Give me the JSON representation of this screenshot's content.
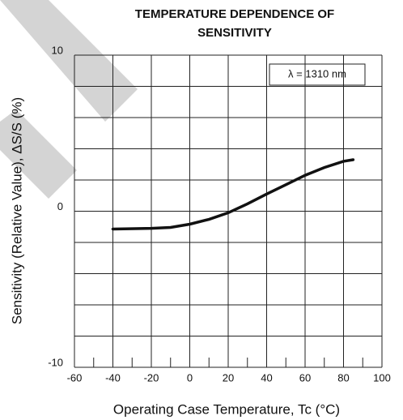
{
  "chart_data": {
    "type": "line",
    "title": [
      "TEMPERATURE DEPENDENCE OF",
      "SENSITIVITY"
    ],
    "x_label": "Operating Case Temperature, Tc (°C)",
    "y_label": "Sensitivity (Relative Value), ΔS/S (%)",
    "annotation": "λ = 1310 nm",
    "xlim": [
      -60,
      100
    ],
    "ylim": [
      -10,
      10
    ],
    "xticks": [
      -60,
      -40,
      -20,
      0,
      20,
      40,
      60,
      80,
      100
    ],
    "xminor_ticks": [
      -50,
      -30,
      -10,
      10,
      30,
      50,
      70,
      90
    ],
    "yticks": [
      -10,
      0,
      10
    ],
    "ygrid": [
      -8,
      -6,
      -4,
      -2,
      2,
      4,
      6,
      8
    ],
    "grid": true,
    "series": [
      {
        "color": "#111111",
        "x": [
          -40,
          -20,
          -10,
          0,
          10,
          20,
          30,
          40,
          50,
          60,
          70,
          80,
          85
        ],
        "values": [
          -1.14,
          -1.1,
          -1.04,
          -0.83,
          -0.52,
          -0.1,
          0.47,
          1.1,
          1.7,
          2.3,
          2.8,
          3.2,
          3.3
        ]
      }
    ]
  }
}
